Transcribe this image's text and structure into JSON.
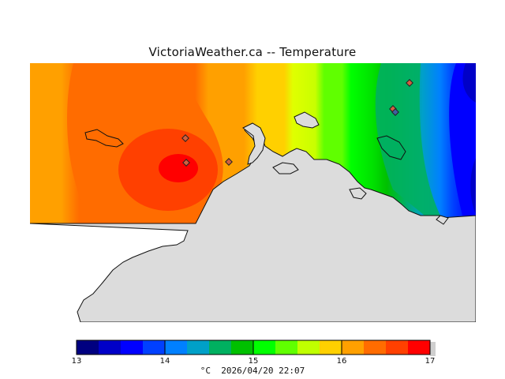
{
  "title": "VictoriaWeather.ca -- Temperature",
  "colorbar": {
    "min": 13,
    "max": 17,
    "tick_labels": [
      "13",
      "14",
      "15",
      "16",
      "17"
    ],
    "colors": [
      "#000080",
      "#0000c8",
      "#0000ff",
      "#0040ff",
      "#0080ff",
      "#00a0c8",
      "#00b060",
      "#00c000",
      "#00ff00",
      "#60ff00",
      "#c0ff00",
      "#ffd000",
      "#ffa000",
      "#ff6c00",
      "#ff4000",
      "#ff0000"
    ],
    "caption": "°C  2026/04/20 22:07"
  },
  "map": {
    "land_color": "#dcdcdc",
    "station_color": "#d06040",
    "stations_count_visible": 6
  }
}
